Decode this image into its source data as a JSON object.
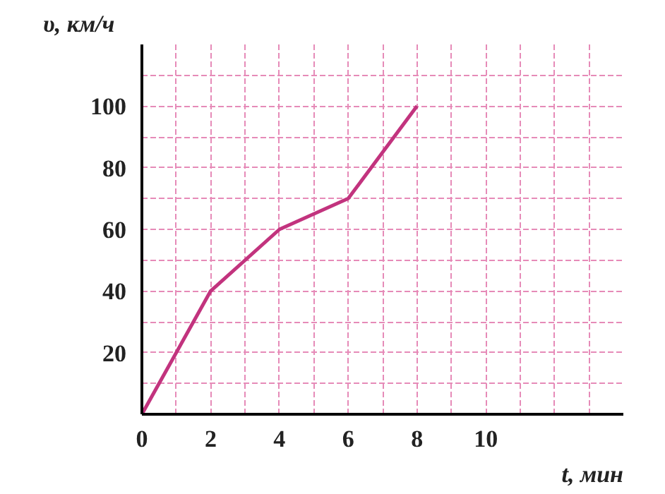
{
  "chart_data": {
    "type": "line",
    "xlabel": "t, мин",
    "ylabel": "υ, км/ч",
    "x": [
      0,
      2,
      4,
      6,
      8
    ],
    "series": [
      {
        "color": "#c2337e",
        "values": [
          0,
          40,
          60,
          70,
          100
        ]
      }
    ],
    "xlim": [
      0,
      14
    ],
    "ylim": [
      0,
      120
    ],
    "xticks": [
      {
        "value": 0,
        "label": "0"
      },
      {
        "value": 1,
        "label": null
      },
      2,
      {
        "value": 3,
        "label": null
      },
      4,
      {
        "value": 5,
        "label": null
      },
      6,
      {
        "value": 7,
        "label": null
      },
      8,
      {
        "value": 9,
        "label": null
      },
      10,
      {
        "value": 11,
        "label": null
      },
      {
        "value": 12,
        "label": null
      },
      {
        "value": 13,
        "label": null
      }
    ],
    "yticks": [
      {
        "value": 0,
        "label": null
      },
      {
        "value": 10,
        "label": null
      },
      20,
      {
        "value": 30,
        "label": null
      },
      40,
      {
        "value": 50,
        "label": null
      },
      60,
      {
        "value": 70,
        "label": null
      },
      80,
      {
        "value": 90,
        "label": null
      },
      100,
      {
        "value": 110,
        "label": null
      }
    ],
    "grid": true,
    "marker": "none",
    "line_style": "solid"
  }
}
